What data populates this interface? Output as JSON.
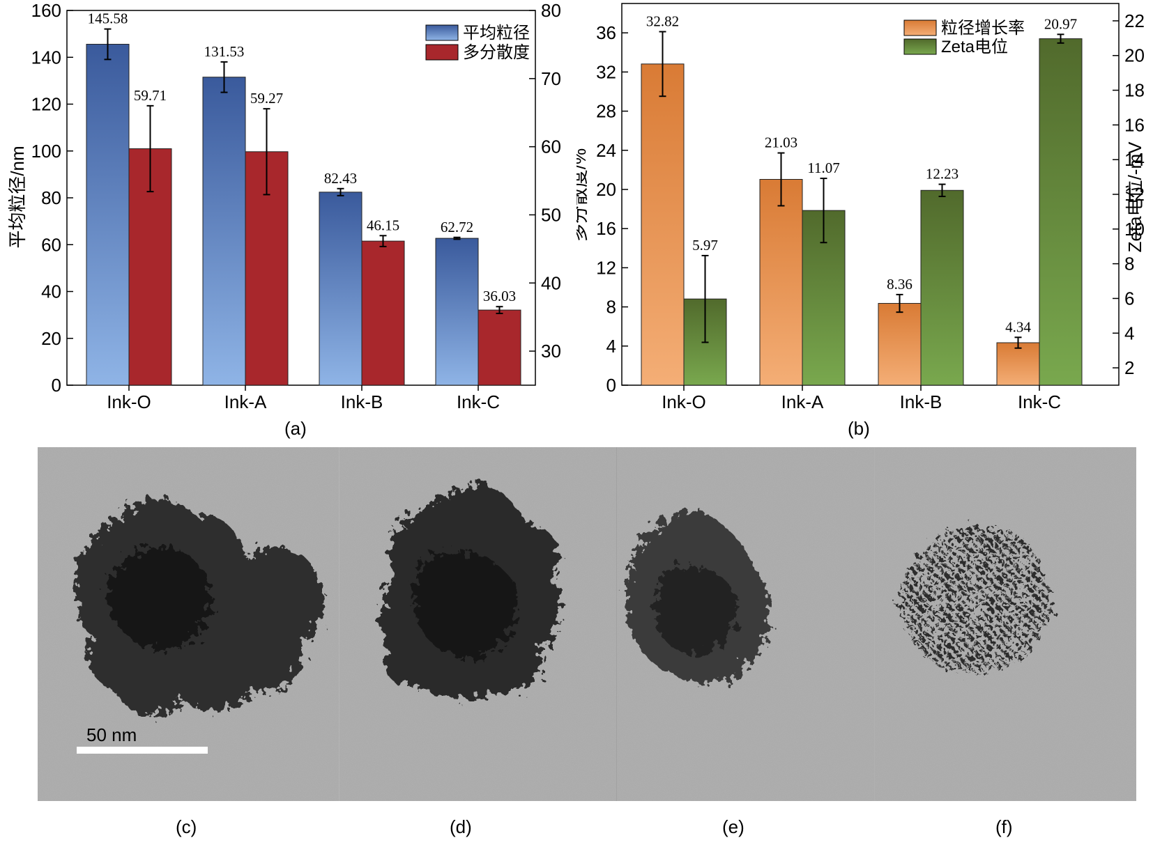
{
  "panel_labels": {
    "a": "(a)",
    "b": "(b)",
    "c": "(c)",
    "d": "(d)",
    "e": "(e)",
    "f": "(f)"
  },
  "tem": {
    "scale_bar_label": "50 nm"
  },
  "chart_data": [
    {
      "id": "a",
      "type": "bar",
      "categories": [
        "Ink-O",
        "Ink-A",
        "Ink-B",
        "Ink-C"
      ],
      "series": [
        {
          "name": "平均粒径",
          "axis": "left",
          "values": [
            145.58,
            131.53,
            82.43,
            62.72
          ],
          "labels": [
            "145.58",
            "131.53",
            "82.43",
            "62.72"
          ],
          "errors": [
            6.5,
            6.5,
            1.5,
            0.4
          ],
          "color_top": "#3a5a9c",
          "color_bottom": "#8fb4e6"
        },
        {
          "name": "多分散度",
          "axis": "right",
          "values": [
            59.71,
            59.27,
            46.15,
            36.03
          ],
          "labels": [
            "59.71",
            "59.27",
            "46.15",
            "36.03"
          ],
          "errors": [
            6.3,
            6.3,
            0.8,
            0.5
          ],
          "color": "#a8272c"
        }
      ],
      "ylabel": "平均粒径/nm",
      "ylim": [
        0,
        160
      ],
      "yticks": [
        "0",
        "20",
        "40",
        "60",
        "80",
        "100",
        "120",
        "140",
        "160"
      ],
      "y2lim": [
        25,
        80
      ],
      "y2ticks": [
        "30",
        "40",
        "50",
        "60",
        "70",
        "80"
      ],
      "legend_position": "top-right"
    },
    {
      "id": "b",
      "type": "bar",
      "categories": [
        "Ink-O",
        "Ink-A",
        "Ink-B",
        "Ink-C"
      ],
      "series": [
        {
          "name": "粒径增长率",
          "axis": "left",
          "values": [
            32.82,
            21.03,
            8.36,
            4.34
          ],
          "labels": [
            "32.82",
            "21.03",
            "8.36",
            "4.34"
          ],
          "errors": [
            3.3,
            2.7,
            0.9,
            0.55
          ],
          "color_top": "#d97b35",
          "color_bottom": "#f4ae76"
        },
        {
          "name": "Zeta电位",
          "axis": "right",
          "values": [
            5.97,
            11.07,
            12.23,
            20.97
          ],
          "labels": [
            "5.97",
            "11.07",
            "12.23",
            "20.97"
          ],
          "errors": [
            2.5,
            1.85,
            0.35,
            0.25
          ],
          "color_top": "#516a2c",
          "color_bottom": "#79a84e"
        }
      ],
      "ylabel": "多分散度/%",
      "ylim": [
        0,
        39
      ],
      "yticks": [
        "0",
        "4",
        "8",
        "12",
        "16",
        "20",
        "24",
        "28",
        "32",
        "36"
      ],
      "y2label": "Zeta电位/-mV",
      "y2lim": [
        1,
        23
      ],
      "y2ticks": [
        "2",
        "4",
        "6",
        "8",
        "10",
        "12",
        "14",
        "16",
        "18",
        "20",
        "22"
      ],
      "legend_position": "top-right"
    }
  ]
}
